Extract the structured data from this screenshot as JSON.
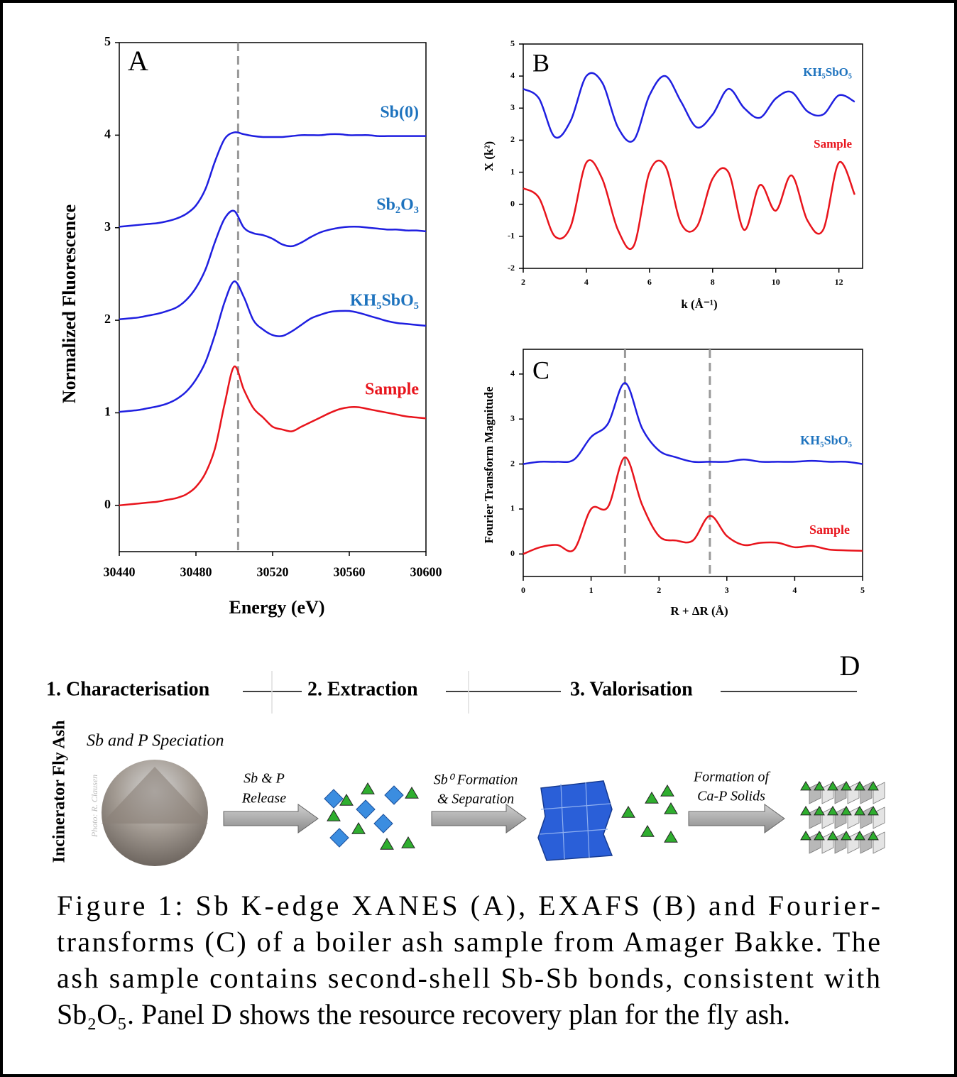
{
  "chart_data": [
    {
      "type": "line",
      "letter": "A",
      "xlabel": "Energy (eV)",
      "ylabel": "Normalized Fluorescence",
      "x": [
        30440,
        30445,
        30450,
        30455,
        30460,
        30465,
        30470,
        30475,
        30480,
        30485,
        30490,
        30495,
        30500,
        30505,
        30510,
        30515,
        30520,
        30525,
        30530,
        30535,
        30540,
        30545,
        30550,
        30555,
        30560,
        30565,
        30570,
        30575,
        30580,
        30585,
        30590,
        30595,
        30600
      ],
      "series": [
        {
          "name": "Sb(0)",
          "color": "#1f1fe0",
          "label_color": "#1e73be",
          "values": [
            3.01,
            3.02,
            3.03,
            3.04,
            3.05,
            3.07,
            3.1,
            3.15,
            3.24,
            3.42,
            3.72,
            3.96,
            4.03,
            4.01,
            3.99,
            3.98,
            3.98,
            3.98,
            3.99,
            4.0,
            4.0,
            4.0,
            4.01,
            4.01,
            4.0,
            4.0,
            4.0,
            3.99,
            3.99,
            3.99,
            3.99,
            3.99,
            3.99
          ]
        },
        {
          "name": "Sb₂O₃",
          "color": "#1f1fe0",
          "label_color": "#1e73be",
          "values": [
            2.01,
            2.02,
            2.03,
            2.05,
            2.07,
            2.1,
            2.14,
            2.22,
            2.35,
            2.55,
            2.85,
            3.1,
            3.18,
            3.0,
            2.94,
            2.92,
            2.88,
            2.82,
            2.8,
            2.84,
            2.9,
            2.95,
            2.98,
            3.0,
            3.01,
            3.01,
            3.0,
            2.99,
            2.98,
            2.98,
            2.97,
            2.97,
            2.96
          ]
        },
        {
          "name": "KH₅SbO₅",
          "color": "#1f1fe0",
          "label_color": "#1e73be",
          "values": [
            1.01,
            1.02,
            1.03,
            1.05,
            1.07,
            1.1,
            1.15,
            1.23,
            1.36,
            1.55,
            1.85,
            2.2,
            2.42,
            2.25,
            2.0,
            1.9,
            1.84,
            1.83,
            1.88,
            1.95,
            2.02,
            2.06,
            2.09,
            2.1,
            2.1,
            2.08,
            2.05,
            2.02,
            1.99,
            1.97,
            1.96,
            1.95,
            1.94
          ]
        },
        {
          "name": "Sample",
          "color": "#e8141c",
          "label_color": "#e8141c",
          "values": [
            0.0,
            0.01,
            0.02,
            0.03,
            0.04,
            0.06,
            0.08,
            0.12,
            0.2,
            0.35,
            0.62,
            1.1,
            1.5,
            1.25,
            1.05,
            0.95,
            0.85,
            0.82,
            0.8,
            0.85,
            0.9,
            0.95,
            1.0,
            1.04,
            1.06,
            1.06,
            1.04,
            1.02,
            1.0,
            0.98,
            0.96,
            0.95,
            0.94
          ]
        }
      ],
      "xlim": [
        30440,
        30600
      ],
      "ylim": [
        -0.5,
        5
      ],
      "xticks": [
        30440,
        30480,
        30520,
        30560,
        30600
      ],
      "yticks": [
        0,
        1,
        2,
        3,
        4,
        5
      ],
      "vlines": [
        30502
      ]
    },
    {
      "type": "line",
      "letter": "B",
      "xlabel": "k (Å⁻¹)",
      "ylabel": "X (k²)",
      "x": [
        2,
        2.5,
        3,
        3.5,
        4,
        4.5,
        5,
        5.5,
        6,
        6.5,
        7,
        7.5,
        8,
        8.5,
        9,
        9.5,
        10,
        10.5,
        11,
        11.5,
        12,
        12.5
      ],
      "series": [
        {
          "name": "KH₅SbO₅",
          "color": "#1f1fe0",
          "label_color": "#1e73be",
          "values": [
            3.6,
            3.3,
            2.1,
            2.6,
            4.0,
            3.8,
            2.4,
            2.0,
            3.4,
            4.0,
            3.2,
            2.4,
            2.8,
            3.6,
            3.0,
            2.7,
            3.3,
            3.5,
            2.9,
            2.8,
            3.4,
            3.2
          ]
        },
        {
          "name": "Sample",
          "color": "#e8141c",
          "label_color": "#e8141c",
          "values": [
            0.5,
            0.2,
            -1.0,
            -0.7,
            1.3,
            0.8,
            -0.8,
            -1.3,
            1.0,
            1.2,
            -0.6,
            -0.7,
            0.8,
            1.0,
            -0.8,
            0.6,
            -0.2,
            0.9,
            -0.5,
            -0.8,
            1.3,
            0.3
          ]
        }
      ],
      "xlim": [
        2,
        12.75
      ],
      "ylim": [
        -2,
        5
      ],
      "xticks": [
        2,
        4,
        6,
        8,
        10,
        12
      ],
      "yticks": [
        -2,
        -1,
        0,
        1,
        2,
        3,
        4,
        5
      ],
      "vlines": []
    },
    {
      "type": "line",
      "letter": "C",
      "xlabel": "R + ΔR (Å)",
      "ylabel": "Fourier Transform Magnitude",
      "x": [
        0,
        0.25,
        0.5,
        0.75,
        1,
        1.25,
        1.5,
        1.75,
        2,
        2.25,
        2.5,
        2.75,
        3,
        3.25,
        3.5,
        3.75,
        4,
        4.25,
        4.5,
        4.75,
        5
      ],
      "series": [
        {
          "name": "KH₅SbO₅",
          "color": "#1f1fe0",
          "label_color": "#1e73be",
          "values": [
            2.0,
            2.05,
            2.05,
            2.1,
            2.6,
            2.9,
            3.8,
            2.8,
            2.3,
            2.15,
            2.05,
            2.05,
            2.05,
            2.1,
            2.05,
            2.05,
            2.05,
            2.07,
            2.05,
            2.05,
            2.0
          ]
        },
        {
          "name": "Sample",
          "color": "#e8141c",
          "label_color": "#e8141c",
          "values": [
            0,
            0.15,
            0.2,
            0.1,
            1.0,
            1.05,
            2.15,
            1.1,
            0.4,
            0.3,
            0.3,
            0.85,
            0.4,
            0.2,
            0.25,
            0.25,
            0.15,
            0.18,
            0.1,
            0.08,
            0.07
          ]
        }
      ],
      "xlim": [
        0,
        5
      ],
      "ylim": [
        -0.5,
        4.55
      ],
      "xticks": [
        0,
        1,
        2,
        3,
        4,
        5
      ],
      "yticks": [
        0,
        1,
        2,
        3,
        4
      ],
      "vlines": [
        1.5,
        2.75
      ]
    }
  ],
  "diagram": {
    "letter": "D",
    "steps": [
      "1. Characterisation",
      "2. Extraction",
      "3. Valorisation"
    ],
    "side_label": "Incinerator Fly Ash",
    "speciation": "Sb and P Speciation",
    "photo_credit": "Photo: R. Clausen",
    "arrows": [
      [
        "Sb & P",
        "Release"
      ],
      [
        "Sb⁰ Formation",
        "& Separation"
      ],
      [
        "Formation of",
        "Ca-P Solids"
      ]
    ]
  },
  "caption": [
    "Figure 1: Sb K-edge XANES (A), EXAFS (B) and Fourier-",
    "transforms (C) of a boiler ash sample from Amager Bakke. The",
    "ash sample contains second-shell Sb-Sb bonds, consistent with",
    "Sb₂O₅. Panel D shows the resource recovery plan for the fly ash."
  ]
}
